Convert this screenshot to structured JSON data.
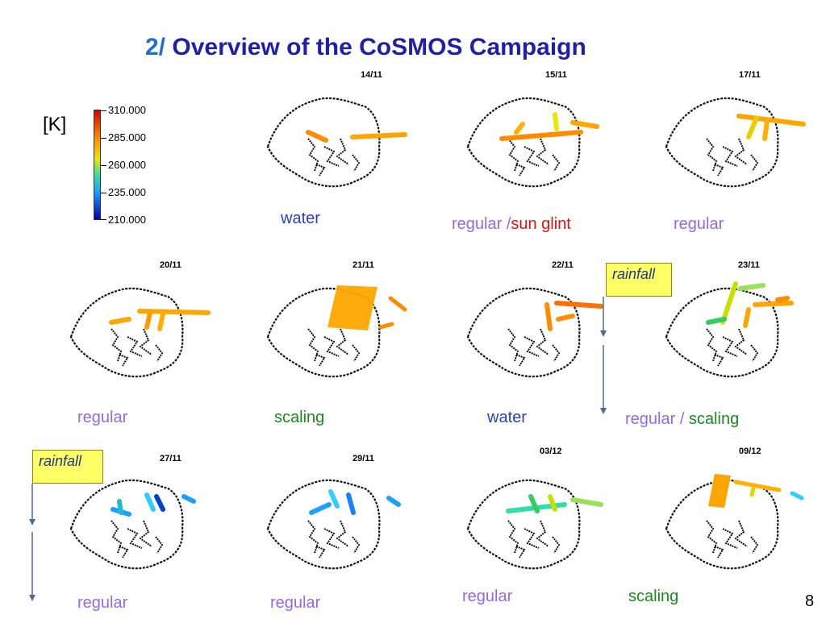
{
  "title": {
    "num": "2/",
    "text": "Overview of the CoSMOS Campaign"
  },
  "colorbar": {
    "unit": "[K]",
    "ticks": [
      "310.000",
      "285.000",
      "260.000",
      "235.000",
      "210.000"
    ]
  },
  "labels": {
    "water": "water",
    "regular": "regular",
    "scaling": "scaling",
    "sun_glint": "sun glint",
    "regular_slash": "regular /",
    "rainfall": "rainfall"
  },
  "maps": [
    {
      "date": "14/11",
      "label": "water",
      "color": "#2a3fbf"
    },
    {
      "date": "15/11",
      "label": "regular / sun glint"
    },
    {
      "date": "17/11",
      "label": "regular"
    },
    {
      "date": "20/11",
      "label": "regular"
    },
    {
      "date": "21/11",
      "label": "scaling"
    },
    {
      "date": "22/11",
      "label": "water"
    },
    {
      "date": "23/11",
      "label": "regular / scaling"
    },
    {
      "date": "27/11",
      "label": "regular"
    },
    {
      "date": "29/11",
      "label": "regular"
    },
    {
      "date": "03/12",
      "label": "regular"
    },
    {
      "date": "09/12",
      "label": "scaling"
    }
  ],
  "page_number": "8"
}
